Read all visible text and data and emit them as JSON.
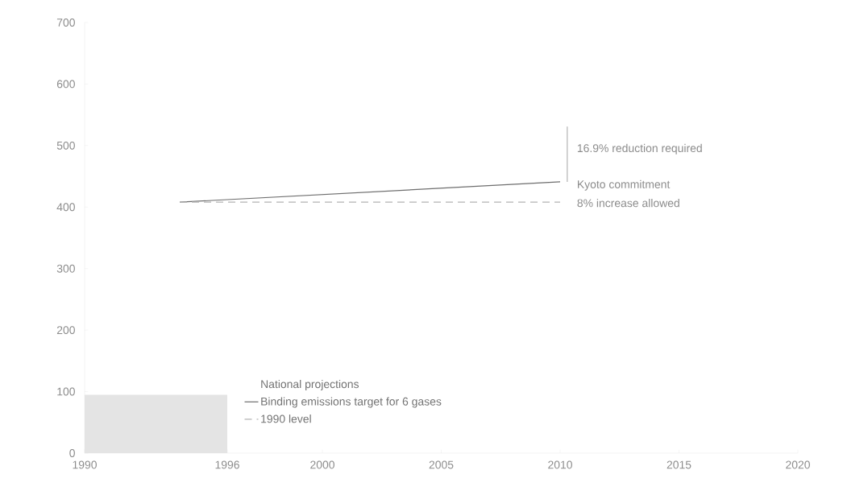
{
  "chart_data": {
    "type": "line",
    "legend_title": "National projections",
    "legend": "bottom",
    "xlim": [
      1990,
      2020
    ],
    "xticks": [
      1990,
      1996,
      2000,
      2005,
      2010,
      2015,
      2020
    ],
    "ylim": [
      0,
      700
    ],
    "yticks": [
      0,
      100,
      200,
      300,
      400,
      500,
      600,
      700
    ],
    "grid": false,
    "series": [
      {
        "type": "area",
        "color": "#e4e4e4",
        "x": [
          1990,
          1996
        ],
        "values": [
          95,
          95
        ]
      },
      {
        "name": "Binding emissions target for 6 gases",
        "color": "#6e6e6e",
        "x": [
          1994,
          2010
        ],
        "values": [
          408,
          441
        ],
        "line_style": "solid"
      },
      {
        "name": "1990 level",
        "color": "#b4b4b4",
        "x": [
          1994,
          2010
        ],
        "values": [
          408,
          408
        ],
        "line_style": "dashed"
      },
      {
        "color": "#b4b4b4",
        "x": [
          2010.3,
          2010.3
        ],
        "values": [
          441,
          531
        ],
        "line_style": "solid"
      }
    ],
    "annotations": [
      "16.9% reduction required",
      "Kyoto commitment",
      "8% increase allowed"
    ]
  }
}
